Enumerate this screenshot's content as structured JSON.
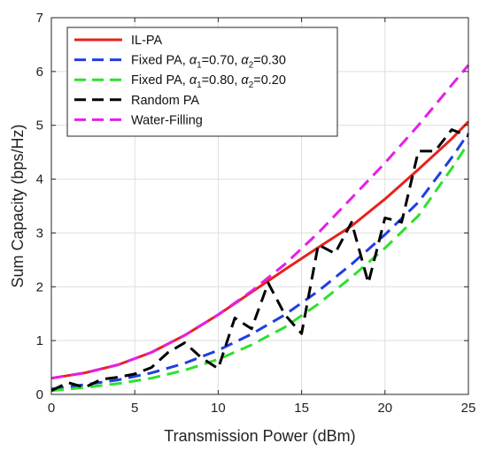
{
  "chart_data": {
    "type": "line",
    "xlabel": "Transmission Power (dBm)",
    "ylabel": "Sum Capacity (bps/Hz)",
    "xlim": [
      0,
      25
    ],
    "ylim": [
      0,
      7
    ],
    "xticks": [
      "0",
      "5",
      "10",
      "15",
      "20",
      "25"
    ],
    "yticks": [
      "0",
      "1",
      "2",
      "3",
      "4",
      "5",
      "6",
      "7"
    ],
    "grid": true,
    "legend_position": "top-left",
    "series": [
      {
        "name": "IL-PA",
        "color": "#e8211d",
        "dash": "solid",
        "x": [
          0,
          2,
          4,
          6,
          8,
          10,
          12,
          14,
          16,
          18,
          20,
          22,
          24,
          25
        ],
        "y": [
          0.3,
          0.4,
          0.55,
          0.78,
          1.1,
          1.48,
          1.9,
          2.32,
          2.73,
          3.13,
          3.63,
          4.18,
          4.75,
          5.07
        ]
      },
      {
        "name": "Fixed PA, α1=0.70, α2=0.30",
        "label_parts": {
          "pre": "Fixed PA, ",
          "a1": "α",
          "s1": "1",
          "v1": "=0.70, ",
          "a2": "α",
          "s2": "2",
          "v2": "=0.30"
        },
        "color": "#1f3fe0",
        "dash": "dashed",
        "x": [
          0,
          2,
          4,
          6,
          8,
          10,
          12,
          14,
          16,
          18,
          20,
          22,
          24,
          25
        ],
        "y": [
          0.1,
          0.18,
          0.27,
          0.4,
          0.58,
          0.82,
          1.12,
          1.48,
          1.92,
          2.42,
          2.97,
          3.57,
          4.4,
          4.85
        ]
      },
      {
        "name": "Fixed PA, α1=0.80, α2=0.20",
        "label_parts": {
          "pre": "Fixed PA, ",
          "a1": "α",
          "s1": "1",
          "v1": "=0.80, ",
          "a2": "α",
          "s2": "2",
          "v2": "=0.20"
        },
        "color": "#2ee02e",
        "dash": "dashed",
        "x": [
          0,
          2,
          4,
          6,
          8,
          10,
          12,
          14,
          16,
          18,
          20,
          22,
          24,
          25
        ],
        "y": [
          0.07,
          0.13,
          0.2,
          0.3,
          0.45,
          0.65,
          0.92,
          1.25,
          1.68,
          2.18,
          2.72,
          3.32,
          4.2,
          4.67
        ]
      },
      {
        "name": "Random PA",
        "color": "#000000",
        "dash": "dashed",
        "x": [
          0,
          1,
          2,
          3,
          4,
          5,
          6,
          7,
          8,
          9,
          10,
          11,
          12,
          13,
          14,
          15,
          16,
          17,
          18,
          19,
          20,
          21,
          22,
          23,
          24,
          25
        ],
        "y": [
          0.07,
          0.22,
          0.13,
          0.28,
          0.32,
          0.38,
          0.5,
          0.78,
          0.96,
          0.68,
          0.48,
          1.42,
          1.22,
          2.07,
          1.48,
          1.13,
          2.78,
          2.62,
          3.2,
          2.07,
          3.28,
          3.2,
          4.52,
          4.52,
          4.92,
          4.8
        ]
      },
      {
        "name": "Water-Filling",
        "color": "#e61ee6",
        "dash": "dashed",
        "x": [
          0,
          2,
          4,
          6,
          8,
          10,
          12,
          14,
          16,
          18,
          20,
          22,
          24,
          25
        ],
        "y": [
          0.3,
          0.4,
          0.55,
          0.78,
          1.1,
          1.48,
          1.92,
          2.42,
          3.0,
          3.65,
          4.3,
          5.0,
          5.75,
          6.12
        ]
      }
    ]
  }
}
